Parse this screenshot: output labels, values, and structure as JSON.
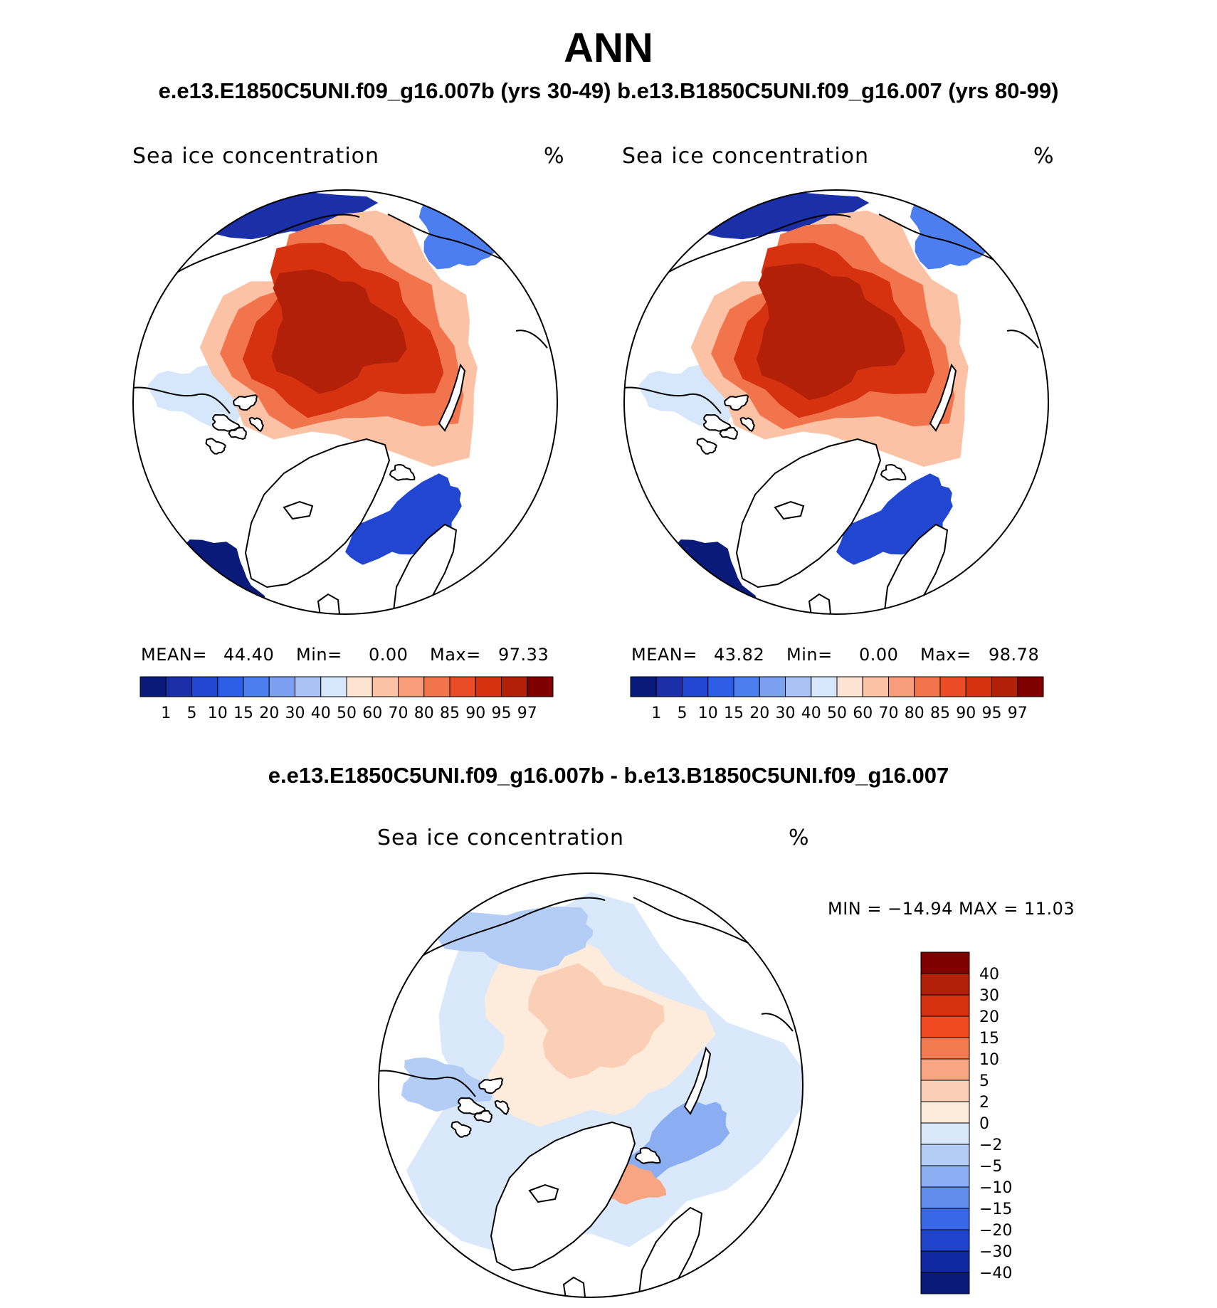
{
  "chart_data": {
    "title": "ANN",
    "subtitle": "e.e13.E1850C5UNI.f09_g16.007b (yrs 30-49)  b.e13.B1850C5UNI.f09_g16.007 (yrs 80-99)",
    "panels": [
      {
        "type": "heatmap",
        "projection": "north-polar-stereographic",
        "variable": "Sea ice concentration",
        "units": "%",
        "stats": {
          "mean_label": "MEAN=",
          "mean": "44.40",
          "min_label": "Min=",
          "min": "0.00",
          "max_label": "Max=",
          "max": "97.33"
        }
      },
      {
        "type": "heatmap",
        "projection": "north-polar-stereographic",
        "variable": "Sea ice concentration",
        "units": "%",
        "stats": {
          "mean_label": "MEAN=",
          "mean": "43.82",
          "min_label": "Min=",
          "min": "0.00",
          "max_label": "Max=",
          "max": "98.78"
        }
      }
    ],
    "colorbar": {
      "levels": [
        "1",
        "5",
        "10",
        "15",
        "20",
        "30",
        "40",
        "50",
        "60",
        "70",
        "80",
        "85",
        "90",
        "95",
        "97"
      ],
      "colors": [
        "#0a1a7a",
        "#1a2fa8",
        "#2146d1",
        "#2e5de8",
        "#4d7ef0",
        "#7ba0f2",
        "#a9c2f6",
        "#d6e6fb",
        "#fde3d2",
        "#fbc2a6",
        "#f79d79",
        "#f2744d",
        "#ea4d26",
        "#d7320f",
        "#b3200a",
        "#800000"
      ]
    },
    "difference": {
      "type": "heatmap",
      "title": "e.e13.E1850C5UNI.f09_g16.007b - b.e13.B1850C5UNI.f09_g16.007",
      "variable": "Sea ice concentration",
      "units": "%",
      "stats": "MIN = −14.94 MAX =   11.03",
      "levels": [
        "40",
        "30",
        "20",
        "15",
        "10",
        "5",
        "2",
        "0",
        "−2",
        "−5",
        "−10",
        "−15",
        "−20",
        "−30",
        "−40"
      ],
      "colors": [
        "#800000",
        "#b3200a",
        "#d7320f",
        "#f04a22",
        "#f47a50",
        "#f8a583",
        "#fbcfb6",
        "#fdebdc",
        "#d9e8fb",
        "#b3cdf6",
        "#8aaef1",
        "#5f8ced",
        "#3868e6",
        "#1e45cc",
        "#1029a2",
        "#0a1a7a"
      ]
    }
  }
}
